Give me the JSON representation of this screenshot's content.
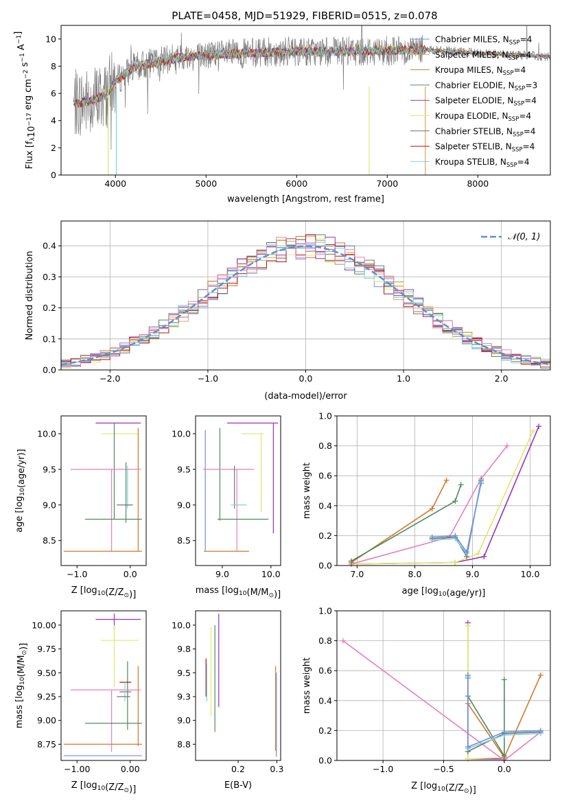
{
  "figure_title": "PLATE=0458, MJD=51929, FIBERID=0515, z=0.078",
  "colors": {
    "Chabrier MILES": "#6f8ee0",
    "Salpeter MILES": "#e0a060",
    "Kroupa MILES": "#d2782a",
    "Chabrier ELODIE": "#4e8a5e",
    "Salpeter ELODIE": "#9b30b8",
    "Kroupa ELODIE": "#dde86a",
    "Chabrier STELIB": "#707070",
    "Salpeter STELIB": "#b01010",
    "Kroupa STELIB": "#78d4dc",
    "extra": "#e67fba",
    "normal": "#5b8fd6"
  },
  "chart_data": [
    {
      "type": "line",
      "id": "spectrum",
      "xlabel": "wavelength [Angstrom, rest frame]",
      "ylabel_parts": [
        "Flux [f",
        "λ",
        "10",
        "−17",
        " erg cm",
        "−2",
        " s",
        "−1",
        " A",
        "−1",
        "]"
      ],
      "xlim": [
        3400,
        8800
      ],
      "ylim": [
        0,
        11
      ],
      "xticks": [
        4000,
        5000,
        6000,
        7000,
        8000
      ],
      "yticks": [
        0,
        2,
        4,
        6,
        8,
        10
      ],
      "legend": "top-right",
      "legend_entries": [
        {
          "name": "Chabrier MILES, N",
          "sub": "SSP",
          "tail": "=4",
          "color": "#6f8ee0"
        },
        {
          "name": "Salpeter MILES, N",
          "sub": "SSP",
          "tail": "=4",
          "color": "#e0a060"
        },
        {
          "name": "Kroupa MILES, N",
          "sub": "SSP",
          "tail": "=4",
          "color": "#d2782a"
        },
        {
          "name": "Chabrier ELODIE, N",
          "sub": "SSP",
          "tail": "=3",
          "color": "#4e8a5e"
        },
        {
          "name": "Salpeter ELODIE, N",
          "sub": "SSP",
          "tail": "=4",
          "color": "#9b30b8"
        },
        {
          "name": "Kroupa ELODIE, N",
          "sub": "SSP",
          "tail": "=4",
          "color": "#dde86a"
        },
        {
          "name": "Chabrier STELIB, N",
          "sub": "SSP",
          "tail": "=4",
          "color": "#707070"
        },
        {
          "name": "Salpeter STELIB, N",
          "sub": "SSP",
          "tail": "=4",
          "color": "#b01010"
        },
        {
          "name": "Kroupa STELIB, N",
          "sub": "SSP",
          "tail": "=4",
          "color": "#78d4dc"
        }
      ],
      "continuum": {
        "x": [
          3540,
          3700,
          3900,
          4000,
          4200,
          4500,
          4800,
          5000,
          5300,
          5600,
          6000,
          6300,
          6600,
          7000,
          7300,
          7420,
          7800,
          8200,
          8800
        ],
        "y": [
          5.2,
          5.4,
          5.9,
          6.9,
          7.9,
          8.4,
          8.7,
          8.8,
          8.9,
          9.0,
          9.1,
          9.05,
          9.1,
          9.15,
          9.2,
          9.2,
          9.05,
          8.9,
          8.7
        ]
      },
      "dropouts": [
        {
          "x": 3920,
          "series": "Kroupa ELODIE"
        },
        {
          "x": 4010,
          "series": "Kroupa STELIB"
        },
        {
          "x": 6800,
          "series": "Kroupa ELODIE"
        },
        {
          "x": 7420,
          "series": "Salpeter MILES"
        }
      ]
    },
    {
      "type": "step",
      "id": "residuals",
      "xlabel": "(data-model)/error",
      "ylabel": "Normed distribution",
      "xlim": [
        -2.5,
        2.5
      ],
      "ylim": [
        0,
        0.48
      ],
      "xticks": [
        -2,
        -1,
        0,
        1,
        2
      ],
      "yticks": [
        0.0,
        0.1,
        0.2,
        0.3,
        0.4
      ],
      "grid": true,
      "bin_width": 0.1,
      "reference": {
        "name": "𝒩(0, 1)",
        "mu": 0,
        "sigma": 1
      }
    },
    {
      "type": "errorbar",
      "id": "age-vs-Z",
      "xlabel_parts": [
        "Z [log",
        "10",
        "(Z/Z",
        "⊙",
        ")]"
      ],
      "ylabel_parts": [
        "age  [log",
        "10",
        "(age/yr)]"
      ],
      "xlim": [
        -1.3,
        0.3
      ],
      "ylim": [
        8.15,
        10.25
      ],
      "xticks": [
        -1,
        0
      ],
      "yticks": [
        8.5,
        9.0,
        9.5,
        10.0
      ],
      "bars": [
        {
          "x": -0.3,
          "y": 10.15,
          "x0": -0.65,
          "x1": 0.2,
          "y0": 10.15,
          "y1": 10.15,
          "series": "Salpeter ELODIE"
        },
        {
          "x": -0.28,
          "y": 10.0,
          "x0": -0.55,
          "x1": 0.15,
          "y0": 10.0,
          "y1": 10.0,
          "series": "Kroupa ELODIE"
        },
        {
          "x": 0.15,
          "y": 10.08,
          "x0": 0.15,
          "x1": 0.15,
          "y0": 8.35,
          "y1": 10.08,
          "series": "Kroupa MILES"
        },
        {
          "x": -0.3,
          "y": 10.15,
          "x0": -0.3,
          "x1": -0.3,
          "y0": 8.8,
          "y1": 10.15,
          "series": "Chabrier ELODIE"
        },
        {
          "x": -0.35,
          "y": 9.5,
          "x0": -1.12,
          "x1": 0.2,
          "y0": 9.5,
          "y1": 9.5,
          "series": "extra"
        },
        {
          "x": -0.35,
          "y": 9.5,
          "x0": -0.35,
          "x1": -0.35,
          "y0": 8.35,
          "y1": 9.5,
          "series": "extra"
        },
        {
          "x": -0.08,
          "y": 9.25,
          "x0": -0.08,
          "x1": -0.08,
          "y0": 8.75,
          "y1": 9.6,
          "series": "Chabrier ELODIE"
        },
        {
          "x": -0.05,
          "y": 9.25,
          "x0": -0.05,
          "x1": -0.05,
          "y0": 8.95,
          "y1": 9.55,
          "series": "Kroupa STELIB"
        },
        {
          "x": -0.1,
          "y": 9.0,
          "x0": -0.25,
          "x1": 0.05,
          "y0": 9.0,
          "y1": 9.0,
          "series": "Chabrier STELIB"
        },
        {
          "x": -0.15,
          "y": 8.8,
          "x0": -0.85,
          "x1": 0.22,
          "y0": 8.8,
          "y1": 8.8,
          "series": "Chabrier ELODIE"
        },
        {
          "x": -0.5,
          "y": 8.35,
          "x0": -1.25,
          "x1": 0.22,
          "y0": 8.35,
          "y1": 8.35,
          "series": "Kroupa MILES"
        }
      ]
    },
    {
      "type": "errorbar",
      "id": "age-vs-mass",
      "xlabel_parts": [
        "mass [log",
        "10",
        "(M/M",
        "⊙",
        ")]"
      ],
      "xlim": [
        8.45,
        10.2
      ],
      "ylim": [
        8.15,
        10.25
      ],
      "xticks": [
        9,
        10
      ],
      "yticks": [
        8.5,
        9.0,
        9.5,
        10.0
      ],
      "bars": [
        {
          "x": 9.1,
          "y": 10.15,
          "x0": 9.1,
          "x1": 10.15,
          "y0": 10.15,
          "y1": 10.15,
          "series": "Salpeter ELODIE"
        },
        {
          "x": 10.05,
          "y": 10.15,
          "x0": 10.05,
          "x1": 10.05,
          "y0": 8.6,
          "y1": 10.15,
          "series": "Salpeter ELODIE"
        },
        {
          "x": 9.4,
          "y": 10.0,
          "x0": 9.4,
          "x1": 9.85,
          "y0": 10.0,
          "y1": 10.0,
          "series": "Kroupa ELODIE"
        },
        {
          "x": 9.8,
          "y": 10.0,
          "x0": 9.8,
          "x1": 9.8,
          "y0": 8.9,
          "y1": 10.0,
          "series": "Kroupa ELODIE"
        },
        {
          "x": 8.65,
          "y": 10.05,
          "x0": 8.65,
          "x1": 8.65,
          "y0": 8.35,
          "y1": 10.05,
          "series": "Chabrier MILES"
        },
        {
          "x": 8.95,
          "y": 10.08,
          "x0": 8.95,
          "x1": 8.95,
          "y0": 8.78,
          "y1": 10.08,
          "series": "Chabrier ELODIE"
        },
        {
          "x": 8.6,
          "y": 9.5,
          "x0": 8.6,
          "x1": 9.65,
          "y0": 9.5,
          "y1": 9.5,
          "series": "extra"
        },
        {
          "x": 9.3,
          "y": 9.5,
          "x0": 9.3,
          "x1": 9.3,
          "y0": 8.35,
          "y1": 9.5,
          "series": "extra"
        },
        {
          "x": 9.25,
          "y": 9.25,
          "x0": 9.25,
          "x1": 9.25,
          "y0": 8.95,
          "y1": 9.55,
          "series": "Chabrier STELIB"
        },
        {
          "x": 9.3,
          "y": 9.0,
          "x0": 9.18,
          "x1": 9.5,
          "y0": 9.0,
          "y1": 9.0,
          "series": "Kroupa STELIB"
        },
        {
          "x": 9.0,
          "y": 8.8,
          "x0": 8.9,
          "x1": 9.95,
          "y0": 8.8,
          "y1": 8.8,
          "series": "Chabrier ELODIE"
        },
        {
          "x": 8.9,
          "y": 8.35,
          "x0": 8.62,
          "x1": 9.55,
          "y0": 8.35,
          "y1": 8.35,
          "series": "Kroupa MILES"
        }
      ]
    },
    {
      "type": "line",
      "id": "weight-vs-age",
      "xlabel_parts": [
        "age  [log",
        "10",
        "(age/yr)]"
      ],
      "ylabel": "mass weight",
      "xlim": [
        6.65,
        10.35
      ],
      "ylim": [
        0,
        1.0
      ],
      "xticks": [
        7,
        8,
        9,
        10
      ],
      "yticks": [
        0.0,
        0.2,
        0.4,
        0.6,
        0.8,
        1.0
      ],
      "grid": true,
      "series": [
        {
          "key": "Salpeter ELODIE",
          "x": [
            6.9,
            8.7,
            9.2,
            10.15
          ],
          "y": [
            0.01,
            0.02,
            0.06,
            0.93
          ]
        },
        {
          "key": "Kroupa ELODIE",
          "x": [
            6.9,
            8.7,
            9.1,
            10.05
          ],
          "y": [
            0.01,
            0.02,
            0.08,
            0.9
          ]
        },
        {
          "key": "extra",
          "x": [
            6.9,
            8.6,
            9.15,
            9.6
          ],
          "y": [
            0.01,
            0.19,
            0.58,
            0.8
          ]
        },
        {
          "key": "Kroupa MILES",
          "x": [
            6.9,
            8.3,
            8.55
          ],
          "y": [
            0.02,
            0.38,
            0.57
          ]
        },
        {
          "key": "Chabrier ELODIE",
          "x": [
            6.9,
            8.7,
            8.8
          ],
          "y": [
            0.03,
            0.43,
            0.54
          ]
        },
        {
          "key": "Chabrier STELIB",
          "x": [
            8.3,
            8.7,
            8.9,
            9.15
          ],
          "y": [
            0.18,
            0.19,
            0.06,
            0.57
          ]
        },
        {
          "key": "Kroupa STELIB",
          "x": [
            8.3,
            8.7,
            8.9,
            9.15
          ],
          "y": [
            0.17,
            0.18,
            0.08,
            0.56
          ]
        },
        {
          "key": "Chabrier MILES",
          "x": [
            8.3,
            8.7,
            8.9,
            9.15
          ],
          "y": [
            0.19,
            0.2,
            0.09,
            0.55
          ]
        }
      ]
    },
    {
      "type": "errorbar",
      "id": "mass-vs-Z",
      "xlabel_parts": [
        "Z [log",
        "10",
        "(Z/Z",
        "⊙",
        ")]"
      ],
      "ylabel_parts": [
        "mass [log",
        "10",
        "(M/M",
        "⊙",
        ")]"
      ],
      "xlim": [
        -1.3,
        0.3
      ],
      "ylim": [
        8.58,
        10.15
      ],
      "xticks": [
        -1,
        0
      ],
      "yticks": [
        8.75,
        9.0,
        9.25,
        9.5,
        9.75,
        10.0
      ],
      "bars": [
        {
          "x": -0.3,
          "y": 10.06,
          "x0": -0.65,
          "x1": 0.2,
          "y0": 10.06,
          "y1": 10.06,
          "series": "Salpeter ELODIE"
        },
        {
          "x": -0.3,
          "y": 10.06,
          "x0": -0.3,
          "x1": -0.3,
          "y0": 9.95,
          "y1": 10.12,
          "series": "Salpeter ELODIE"
        },
        {
          "x": -0.3,
          "y": 9.84,
          "x0": -0.55,
          "x1": 0.15,
          "y0": 9.84,
          "y1": 9.84,
          "series": "Kroupa ELODIE"
        },
        {
          "x": -0.3,
          "y": 9.84,
          "x0": -0.3,
          "x1": -0.3,
          "y0": 9.35,
          "y1": 10.0,
          "series": "Kroupa ELODIE"
        },
        {
          "x": -0.05,
          "y": 9.58,
          "x0": -0.05,
          "x1": -0.05,
          "y0": 8.9,
          "y1": 9.62,
          "series": "Chabrier ELODIE"
        },
        {
          "x": 0.15,
          "y": 9.57,
          "x0": 0.15,
          "x1": 0.15,
          "y0": 8.73,
          "y1": 9.57,
          "series": "Kroupa MILES"
        },
        {
          "x": -0.35,
          "y": 9.32,
          "x0": -1.12,
          "x1": 0.2,
          "y0": 9.32,
          "y1": 9.32,
          "series": "extra"
        },
        {
          "x": -0.35,
          "y": 9.32,
          "x0": -0.35,
          "x1": -0.35,
          "y0": 8.67,
          "y1": 9.32,
          "series": "extra"
        },
        {
          "x": -0.1,
          "y": 9.4,
          "x0": -0.2,
          "x1": 0.02,
          "y0": 9.4,
          "y1": 9.4,
          "series": "Salpeter STELIB"
        },
        {
          "x": -0.1,
          "y": 9.3,
          "x0": -0.2,
          "x1": 0.02,
          "y0": 9.3,
          "y1": 9.3,
          "series": "Chabrier STELIB"
        },
        {
          "x": -0.1,
          "y": 9.28,
          "x0": -0.1,
          "x1": -0.1,
          "y0": 9.2,
          "y1": 9.4,
          "series": "Kroupa STELIB"
        },
        {
          "x": -0.1,
          "y": 9.25,
          "x0": -0.25,
          "x1": 0.0,
          "y0": 9.25,
          "y1": 9.25,
          "series": "Chabrier STELIB"
        },
        {
          "x": -0.15,
          "y": 8.97,
          "x0": -0.85,
          "x1": 0.22,
          "y0": 8.97,
          "y1": 8.97,
          "series": "Chabrier ELODIE"
        },
        {
          "x": -0.5,
          "y": 8.75,
          "x0": -1.25,
          "x1": 0.22,
          "y0": 8.75,
          "y1": 8.75,
          "series": "Kroupa MILES"
        },
        {
          "x": -0.5,
          "y": 8.63,
          "x0": -1.25,
          "x1": 0.22,
          "y0": 8.63,
          "y1": 8.63,
          "series": "Chabrier MILES"
        }
      ]
    },
    {
      "type": "errorbar",
      "id": "mass-vs-EBV",
      "xlabel": "E(B-V)",
      "xlim": [
        0.09,
        0.31
      ],
      "ylim": [
        8.58,
        10.15
      ],
      "xticks": [
        0.2,
        0.3
      ],
      "yticks": [
        8.75,
        9.0,
        9.25,
        9.5,
        9.75,
        10.0
      ],
      "bars": [
        {
          "x": 0.117,
          "y": 9.45,
          "x0": 0.117,
          "x1": 0.117,
          "y0": 9.25,
          "y1": 9.65,
          "series": "Salpeter STELIB"
        },
        {
          "x": 0.119,
          "y": 9.4,
          "x0": 0.119,
          "x1": 0.119,
          "y0": 9.2,
          "y1": 9.6,
          "series": "Kroupa STELIB"
        },
        {
          "x": 0.13,
          "y": 9.5,
          "x0": 0.13,
          "x1": 0.13,
          "y0": 9.05,
          "y1": 9.98,
          "series": "Kroupa ELODIE"
        },
        {
          "x": 0.14,
          "y": 9.5,
          "x0": 0.14,
          "x1": 0.14,
          "y0": 8.88,
          "y1": 10.0,
          "series": "Chabrier ELODIE"
        },
        {
          "x": 0.15,
          "y": 9.6,
          "x0": 0.15,
          "x1": 0.15,
          "y0": 9.14,
          "y1": 10.12,
          "series": "Salpeter ELODIE"
        },
        {
          "x": 0.297,
          "y": 9.1,
          "x0": 0.297,
          "x1": 0.297,
          "y0": 8.68,
          "y1": 9.57,
          "series": "Kroupa MILES"
        },
        {
          "x": 0.299,
          "y": 9.1,
          "x0": 0.299,
          "x1": 0.299,
          "y0": 8.62,
          "y1": 9.5,
          "series": "Chabrier MILES"
        }
      ]
    },
    {
      "type": "line",
      "id": "weight-vs-Z",
      "xlabel_parts": [
        "Z [log",
        "10",
        "(Z/Z",
        "⊙",
        ")]"
      ],
      "ylabel": "mass weight",
      "xlim": [
        -1.38,
        0.38
      ],
      "ylim": [
        0,
        1.0
      ],
      "xticks": [
        -1.0,
        -0.5,
        0.0
      ],
      "yticks": [
        0.0,
        0.2,
        0.4,
        0.6,
        0.8,
        1.0
      ],
      "grid": true,
      "series": [
        {
          "key": "Salpeter ELODIE",
          "x": [
            -0.3,
            -0.3,
            0.0
          ],
          "y": [
            0.92,
            0.01,
            0.01
          ]
        },
        {
          "key": "Kroupa ELODIE",
          "x": [
            -0.3,
            -0.3,
            0.0
          ],
          "y": [
            0.9,
            0.01,
            0.02
          ]
        },
        {
          "key": "extra",
          "x": [
            -1.33,
            0.0,
            0.3
          ],
          "y": [
            0.8,
            0.0,
            0.19
          ]
        },
        {
          "key": "Kroupa MILES",
          "x": [
            -0.3,
            0.0,
            0.3
          ],
          "y": [
            0.38,
            0.02,
            0.57
          ]
        },
        {
          "key": "Chabrier ELODIE",
          "x": [
            -0.3,
            0.0,
            0.0
          ],
          "y": [
            0.43,
            0.03,
            0.54
          ]
        },
        {
          "key": "Chabrier STELIB",
          "x": [
            -0.3,
            -0.3,
            0.0,
            0.3
          ],
          "y": [
            0.57,
            0.06,
            0.18,
            0.19
          ]
        },
        {
          "key": "Kroupa STELIB",
          "x": [
            -0.3,
            -0.3,
            0.0,
            0.3
          ],
          "y": [
            0.56,
            0.08,
            0.17,
            0.18
          ]
        },
        {
          "key": "Chabrier MILES",
          "x": [
            -0.3,
            -0.3,
            0.0,
            0.3
          ],
          "y": [
            0.55,
            0.09,
            0.19,
            0.2
          ]
        }
      ]
    }
  ]
}
